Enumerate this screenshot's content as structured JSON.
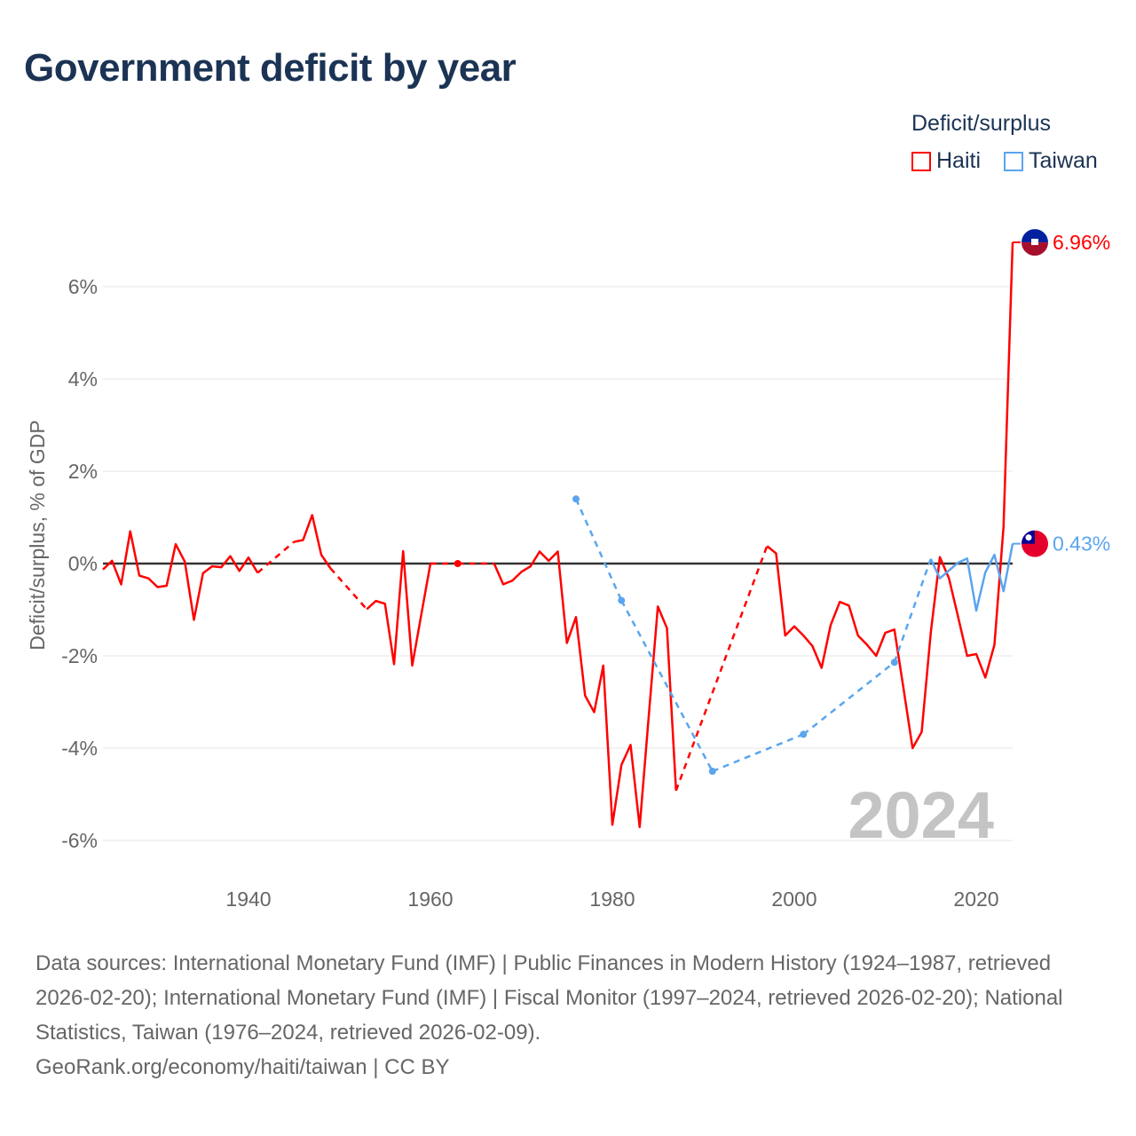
{
  "title": "Government deficit by year",
  "legend": {
    "title": "Deficit/surplus",
    "items": [
      {
        "name": "Haiti",
        "color": "#ff0000"
      },
      {
        "name": "Taiwan",
        "color": "#5aa5ee"
      }
    ]
  },
  "year_watermark": "2024",
  "footer": {
    "sources": "Data sources: International Monetary Fund (IMF) | Public Finances in Modern History (1924–1987, retrieved 2026-02-20); International Monetary Fund (IMF) | Fiscal Monitor (1997–2024, retrieved 2026-02-20); National Statistics, Taiwan (1976–2024, retrieved 2026-02-09).",
    "credit": "GeoRank.org/economy/haiti/taiwan | CC BY"
  },
  "chart_data": {
    "type": "line",
    "title": "Government deficit by year",
    "ylabel": "Deficit/surplus, % of GDP",
    "xlabel": "",
    "xlim": [
      1924,
      2024
    ],
    "ylim": [
      -6.5,
      7
    ],
    "x_ticks": [
      1940,
      1960,
      1980,
      2000,
      2020
    ],
    "x_tick_labels": [
      "1940",
      "1960",
      "1980",
      "2000",
      "2020"
    ],
    "y_ticks": [
      -6,
      -4,
      -2,
      0,
      2,
      4,
      6
    ],
    "y_tick_labels": [
      "-6%",
      "-4%",
      "-2%",
      "0%",
      "2%",
      "4%",
      "6%"
    ],
    "grid": true,
    "legend_position": "top-right",
    "series": [
      {
        "name": "Haiti",
        "color": "#ff0000",
        "end_label": "6.96%",
        "points": [
          [
            1924,
            -0.13
          ],
          [
            1925,
            0.06
          ],
          [
            1926,
            -0.45
          ],
          [
            1927,
            0.7
          ],
          [
            1928,
            -0.26
          ],
          [
            1929,
            -0.32
          ],
          [
            1930,
            -0.51
          ],
          [
            1931,
            -0.48
          ],
          [
            1932,
            0.42
          ],
          [
            1933,
            0.04
          ],
          [
            1934,
            -1.22
          ],
          [
            1935,
            -0.21
          ],
          [
            1936,
            -0.06
          ],
          [
            1937,
            -0.08
          ],
          [
            1938,
            0.16
          ],
          [
            1939,
            -0.16
          ],
          [
            1940,
            0.13
          ],
          [
            1941,
            -0.2
          ],
          [
            1945,
            0.47
          ],
          [
            1946,
            0.51
          ],
          [
            1947,
            1.05
          ],
          [
            1948,
            0.19
          ],
          [
            1949,
            -0.1
          ],
          [
            1953,
            -0.99
          ],
          [
            1954,
            -0.81
          ],
          [
            1955,
            -0.87
          ],
          [
            1956,
            -2.18
          ],
          [
            1957,
            0.27
          ],
          [
            1958,
            -2.21
          ],
          [
            1959,
            -1.1
          ],
          [
            1960,
            0
          ],
          [
            1963,
            0
          ],
          [
            1967,
            0
          ],
          [
            1968,
            -0.45
          ],
          [
            1969,
            -0.37
          ],
          [
            1970,
            -0.18
          ],
          [
            1971,
            -0.06
          ],
          [
            1972,
            0.26
          ],
          [
            1973,
            0.06
          ],
          [
            1974,
            0.26
          ],
          [
            1975,
            -1.72
          ],
          [
            1976,
            -1.16
          ],
          [
            1977,
            -2.86
          ],
          [
            1978,
            -3.22
          ],
          [
            1979,
            -2.21
          ],
          [
            1980,
            -5.66
          ],
          [
            1981,
            -4.36
          ],
          [
            1982,
            -3.93
          ],
          [
            1983,
            -5.71
          ],
          [
            1984,
            -3.3
          ],
          [
            1985,
            -0.93
          ],
          [
            1986,
            -1.4
          ],
          [
            1987,
            -4.92
          ],
          [
            1997,
            0.38
          ],
          [
            1998,
            0.22
          ],
          [
            1999,
            -1.56
          ],
          [
            2000,
            -1.36
          ],
          [
            2001,
            -1.56
          ],
          [
            2002,
            -1.79
          ],
          [
            2003,
            -2.26
          ],
          [
            2004,
            -1.33
          ],
          [
            2005,
            -0.83
          ],
          [
            2006,
            -0.91
          ],
          [
            2007,
            -1.56
          ],
          [
            2008,
            -1.76
          ],
          [
            2009,
            -2.0
          ],
          [
            2010,
            -1.5
          ],
          [
            2011,
            -1.43
          ],
          [
            2012,
            -2.7
          ],
          [
            2013,
            -4.0
          ],
          [
            2014,
            -3.65
          ],
          [
            2015,
            -1.5
          ],
          [
            2016,
            0.14
          ],
          [
            2017,
            -0.32
          ],
          [
            2018,
            -1.15
          ],
          [
            2019,
            -2.0
          ],
          [
            2020,
            -1.96
          ],
          [
            2021,
            -2.47
          ],
          [
            2022,
            -1.76
          ],
          [
            2023,
            0.8
          ],
          [
            2024,
            6.96
          ]
        ]
      },
      {
        "name": "Taiwan",
        "color": "#5aa5ee",
        "end_label": "0.43%",
        "points": [
          [
            1976,
            1.4
          ],
          [
            1981,
            -0.8
          ],
          [
            1991,
            -4.5
          ],
          [
            2001,
            -3.7
          ],
          [
            2011,
            -2.14
          ],
          [
            2015,
            0.1
          ],
          [
            2016,
            -0.32
          ],
          [
            2017,
            -0.15
          ],
          [
            2018,
            0.02
          ],
          [
            2019,
            0.11
          ],
          [
            2020,
            -1.02
          ],
          [
            2021,
            -0.19
          ],
          [
            2022,
            0.19
          ],
          [
            2023,
            -0.6
          ],
          [
            2024,
            0.43
          ]
        ]
      }
    ]
  }
}
